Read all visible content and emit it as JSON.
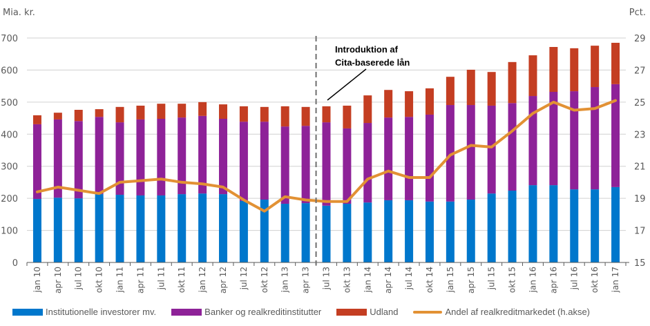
{
  "chart_data": {
    "type": "bar",
    "subtype": "stacked-bar-with-line",
    "left_axis_label": "Mia. kr.",
    "right_axis_label": "Pct.",
    "left_ylim": [
      0,
      700
    ],
    "left_yticks": [
      0,
      100,
      200,
      300,
      400,
      500,
      600,
      700
    ],
    "right_ylim": [
      15,
      29
    ],
    "right_yticks": [
      15,
      17,
      19,
      21,
      23,
      25,
      27,
      29
    ],
    "grid": true,
    "legend_position": "bottom",
    "categories": [
      "jan 10",
      "apr 10",
      "jul 10",
      "okt 10",
      "jan 11",
      "apr 11",
      "jul 11",
      "okt 11",
      "jan 12",
      "apr 12",
      "jul 12",
      "okt 12",
      "jan 13",
      "apr 13",
      "jul 13",
      "okt 13",
      "jan 14",
      "apr 14",
      "jul 14",
      "okt 14",
      "jan 15",
      "apr 15",
      "jul 15",
      "okt 15",
      "jan 16",
      "apr 16",
      "jul 16",
      "okt 16",
      "jan 17"
    ],
    "series": [
      {
        "name": "Institutionelle investorer mv.",
        "type": "bar",
        "axis": "left",
        "color": "#0077CC",
        "values": [
          198,
          202,
          200,
          213,
          211,
          209,
          209,
          213,
          215,
          213,
          192,
          196,
          183,
          185,
          177,
          183,
          187,
          194,
          194,
          190,
          190,
          196,
          215,
          224,
          241,
          241,
          228,
          228,
          235
        ]
      },
      {
        "name": "Banker og realkreditinstitutter",
        "type": "bar",
        "axis": "left",
        "color": "#8E2298",
        "values": [
          233,
          244,
          241,
          241,
          226,
          237,
          239,
          239,
          242,
          235,
          247,
          243,
          241,
          241,
          260,
          235,
          248,
          258,
          260,
          271,
          301,
          295,
          274,
          273,
          278,
          291,
          306,
          319,
          321
        ]
      },
      {
        "name": "Udland",
        "type": "bar",
        "axis": "left",
        "color": "#C43E22",
        "values": [
          28,
          21,
          35,
          24,
          48,
          43,
          47,
          43,
          43,
          45,
          48,
          46,
          63,
          59,
          50,
          71,
          86,
          86,
          80,
          82,
          88,
          110,
          105,
          128,
          127,
          140,
          134,
          129,
          129
        ]
      },
      {
        "name": "Andel af realkreditmarkedet (h.akse)",
        "type": "line",
        "axis": "right",
        "color": "#E29134",
        "values": [
          19.4,
          19.7,
          19.5,
          19.3,
          20.0,
          20.1,
          20.2,
          20.0,
          19.9,
          19.7,
          18.9,
          18.2,
          19.1,
          18.9,
          18.8,
          18.8,
          20.2,
          20.7,
          20.3,
          20.3,
          21.7,
          22.3,
          22.2,
          23.2,
          24.3,
          25.0,
          24.5,
          24.6,
          25.1
        ]
      }
    ],
    "annotations": [
      {
        "text_lines": [
          "Introduktion af",
          "Cita-baserede lån"
        ],
        "marker": "dashed vertical line between apr 13 and jul 13"
      }
    ]
  },
  "legend": [
    {
      "label": "Institutionelle investorer mv.",
      "color": "#0077CC",
      "kind": "bar"
    },
    {
      "label": "Banker og realkreditinstitutter",
      "color": "#8E2298",
      "kind": "bar"
    },
    {
      "label": "Udland",
      "color": "#C43E22",
      "kind": "bar"
    },
    {
      "label": "Andel af realkreditmarkedet (h.akse)",
      "color": "#E29134",
      "kind": "line"
    }
  ]
}
